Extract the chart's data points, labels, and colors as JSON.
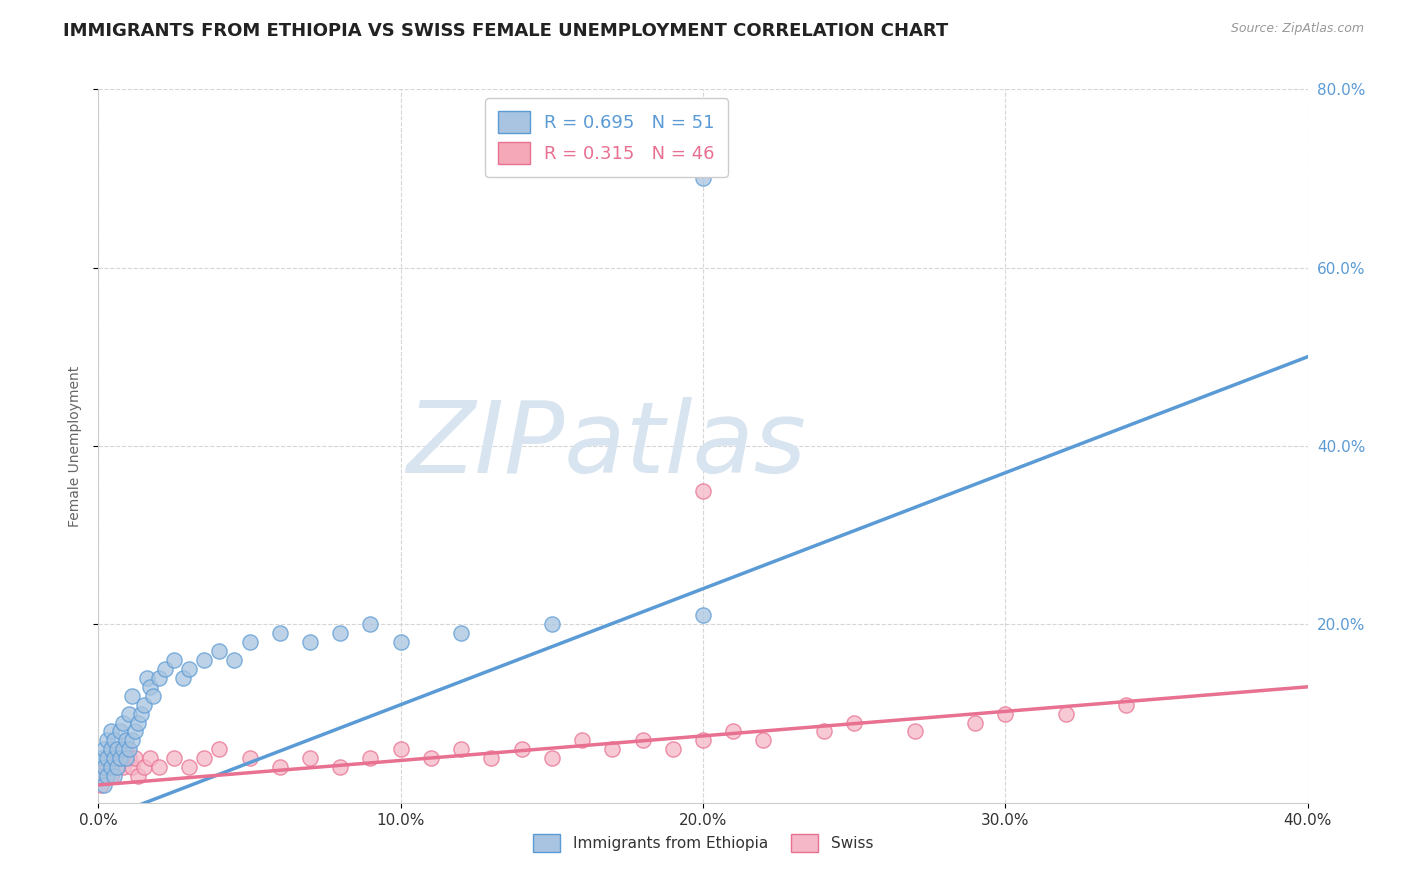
{
  "title": "IMMIGRANTS FROM ETHIOPIA VS SWISS FEMALE UNEMPLOYMENT CORRELATION CHART",
  "source": "Source: ZipAtlas.com",
  "ylabel": "Female Unemployment",
  "watermark": "ZIPatlas",
  "legend_entries": [
    {
      "label": "Immigrants from Ethiopia",
      "R": 0.695,
      "N": 51,
      "color": "#a8c4e0"
    },
    {
      "label": "Swiss",
      "R": 0.315,
      "N": 46,
      "color": "#f4a8b8"
    }
  ],
  "xlim": [
    0.0,
    0.4
  ],
  "ylim": [
    0.0,
    0.8
  ],
  "x_ticks": [
    0.0,
    0.1,
    0.2,
    0.3,
    0.4
  ],
  "y_ticks": [
    0.2,
    0.4,
    0.6,
    0.8
  ],
  "blue_scatter_x": [
    0.001,
    0.001,
    0.002,
    0.002,
    0.002,
    0.003,
    0.003,
    0.003,
    0.004,
    0.004,
    0.004,
    0.005,
    0.005,
    0.005,
    0.006,
    0.006,
    0.007,
    0.007,
    0.008,
    0.008,
    0.009,
    0.009,
    0.01,
    0.01,
    0.011,
    0.011,
    0.012,
    0.013,
    0.014,
    0.015,
    0.016,
    0.017,
    0.018,
    0.02,
    0.022,
    0.025,
    0.028,
    0.03,
    0.035,
    0.04,
    0.045,
    0.05,
    0.06,
    0.07,
    0.08,
    0.09,
    0.1,
    0.12,
    0.15,
    0.2,
    0.2
  ],
  "blue_scatter_y": [
    0.03,
    0.05,
    0.02,
    0.04,
    0.06,
    0.03,
    0.05,
    0.07,
    0.04,
    0.06,
    0.08,
    0.03,
    0.05,
    0.07,
    0.04,
    0.06,
    0.05,
    0.08,
    0.06,
    0.09,
    0.05,
    0.07,
    0.06,
    0.1,
    0.07,
    0.12,
    0.08,
    0.09,
    0.1,
    0.11,
    0.14,
    0.13,
    0.12,
    0.14,
    0.15,
    0.16,
    0.14,
    0.15,
    0.16,
    0.17,
    0.16,
    0.18,
    0.19,
    0.18,
    0.19,
    0.2,
    0.18,
    0.19,
    0.2,
    0.21,
    0.7
  ],
  "pink_scatter_x": [
    0.001,
    0.002,
    0.003,
    0.004,
    0.005,
    0.006,
    0.007,
    0.008,
    0.009,
    0.01,
    0.011,
    0.012,
    0.013,
    0.015,
    0.017,
    0.02,
    0.025,
    0.03,
    0.035,
    0.04,
    0.05,
    0.06,
    0.07,
    0.08,
    0.09,
    0.1,
    0.11,
    0.12,
    0.13,
    0.14,
    0.15,
    0.16,
    0.17,
    0.18,
    0.19,
    0.2,
    0.21,
    0.22,
    0.24,
    0.25,
    0.27,
    0.29,
    0.3,
    0.32,
    0.34,
    0.2
  ],
  "pink_scatter_y": [
    0.02,
    0.03,
    0.04,
    0.03,
    0.05,
    0.04,
    0.05,
    0.04,
    0.06,
    0.05,
    0.04,
    0.05,
    0.03,
    0.04,
    0.05,
    0.04,
    0.05,
    0.04,
    0.05,
    0.06,
    0.05,
    0.04,
    0.05,
    0.04,
    0.05,
    0.06,
    0.05,
    0.06,
    0.05,
    0.06,
    0.05,
    0.07,
    0.06,
    0.07,
    0.06,
    0.07,
    0.08,
    0.07,
    0.08,
    0.09,
    0.08,
    0.09,
    0.1,
    0.1,
    0.11,
    0.35
  ],
  "blue_line_x": [
    0.0,
    0.4
  ],
  "blue_line_y": [
    -0.02,
    0.5
  ],
  "pink_line_x": [
    0.0,
    0.4
  ],
  "pink_line_y": [
    0.02,
    0.13
  ],
  "blue_color": "#5b9bd5",
  "pink_color": "#e87090",
  "blue_scatter_color": "#a8c4e0",
  "pink_scatter_color": "#f4b8c8",
  "grid_color": "#cccccc",
  "background_color": "#ffffff",
  "title_fontsize": 13,
  "watermark_color": "#d8e4f0",
  "watermark_fontsize": 72
}
